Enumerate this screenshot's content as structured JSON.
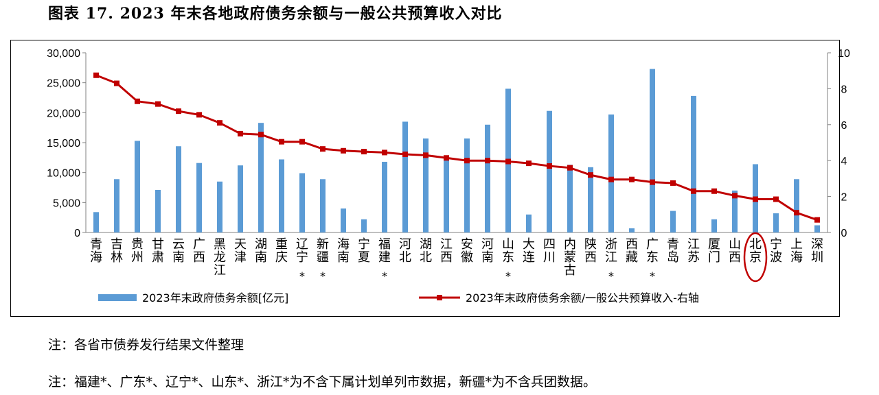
{
  "title": "图表 17. 2023 年末各地政府债务余额与一般公共预算收入对比",
  "notes": [
    "注：各省市债券发行结果文件整理",
    "注：福建*、广东*、辽宁*、山东*、浙江*为不含下属计划单列市数据，新疆*为不含兵团数据。"
  ],
  "colors": {
    "bar": "#5B9BD5",
    "line": "#C00000",
    "highlight": "#C00000"
  },
  "chart_data": {
    "type": "bar+line",
    "categories": [
      "青海",
      "吉林",
      "贵州",
      "甘肃",
      "云南",
      "广西",
      "黑龙江",
      "天津",
      "湖南",
      "重庆",
      "辽宁*",
      "新疆*",
      "海南",
      "宁夏",
      "福建*",
      "河北",
      "湖北",
      "江西",
      "安徽",
      "河南",
      "山东*",
      "大连",
      "四川",
      "内蒙古",
      "陕西",
      "浙江*",
      "西藏",
      "广东*",
      "青岛",
      "江苏",
      "厦门",
      "山西",
      "北京",
      "宁波",
      "上海",
      "深圳"
    ],
    "category_lines": [
      [
        "青",
        "海"
      ],
      [
        "吉",
        "林"
      ],
      [
        "贵",
        "州"
      ],
      [
        "甘",
        "肃"
      ],
      [
        "云",
        "南"
      ],
      [
        "广",
        "西"
      ],
      [
        "黑",
        "龙",
        "江"
      ],
      [
        "天",
        "津"
      ],
      [
        "湖",
        "南"
      ],
      [
        "重",
        "庆"
      ],
      [
        "辽",
        "宁",
        "*"
      ],
      [
        "新",
        "疆",
        "*"
      ],
      [
        "海",
        "南"
      ],
      [
        "宁",
        "夏"
      ],
      [
        "福",
        "建",
        "*"
      ],
      [
        "河",
        "北"
      ],
      [
        "湖",
        "北"
      ],
      [
        "江",
        "西"
      ],
      [
        "安",
        "徽"
      ],
      [
        "河",
        "南"
      ],
      [
        "山",
        "东",
        "*"
      ],
      [
        "大",
        "连"
      ],
      [
        "四",
        "川"
      ],
      [
        "内",
        "蒙",
        "古"
      ],
      [
        "陕",
        "西"
      ],
      [
        "浙",
        "江",
        "*"
      ],
      [
        "西",
        "藏"
      ],
      [
        "广",
        "东",
        "*"
      ],
      [
        "青",
        "岛"
      ],
      [
        "江",
        "苏"
      ],
      [
        "厦",
        "门"
      ],
      [
        "山",
        "西"
      ],
      [
        "北",
        "京"
      ],
      [
        "宁",
        "波"
      ],
      [
        "上",
        "海"
      ],
      [
        "深",
        "圳"
      ]
    ],
    "series": [
      {
        "name": "2023年末政府债务余额[亿元]",
        "type": "bar",
        "axis": "left",
        "values": [
          3400,
          8900,
          15300,
          7100,
          14400,
          11600,
          8500,
          11200,
          18300,
          12200,
          9900,
          8900,
          4000,
          2200,
          11800,
          18500,
          15700,
          12700,
          15700,
          18000,
          24000,
          3000,
          20300,
          11300,
          10900,
          19700,
          700,
          27300,
          3600,
          22800,
          2200,
          7000,
          11400,
          3200,
          8900,
          1200
        ]
      },
      {
        "name": "2023年末政府债务余额/一般公共预算收入-右轴",
        "type": "line",
        "axis": "right",
        "values": [
          8.75,
          8.3,
          7.3,
          7.15,
          6.75,
          6.55,
          6.1,
          5.5,
          5.45,
          5.05,
          5.05,
          4.65,
          4.55,
          4.5,
          4.45,
          4.35,
          4.3,
          4.15,
          4.0,
          4.0,
          3.95,
          3.85,
          3.7,
          3.6,
          3.2,
          2.95,
          2.95,
          2.8,
          2.75,
          2.3,
          2.3,
          2.05,
          1.85,
          1.85,
          1.1,
          0.7
        ]
      }
    ],
    "y_left": {
      "min": 0,
      "max": 30000,
      "ticks": [
        "0",
        "5,000",
        "10,000",
        "15,000",
        "20,000",
        "25,000",
        "30,000"
      ]
    },
    "y_right": {
      "min": 0,
      "max": 10,
      "ticks": [
        "0",
        "2",
        "4",
        "6",
        "8",
        "10"
      ]
    },
    "highlighted_category": "北京",
    "legend_position": "bottom"
  }
}
